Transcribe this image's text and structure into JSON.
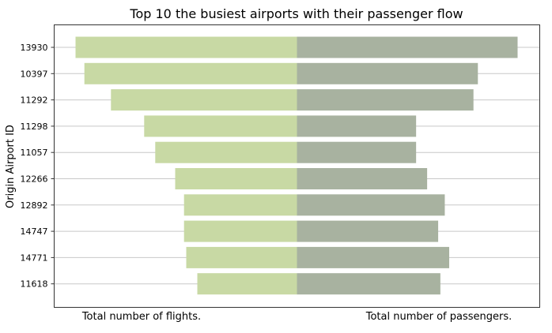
{
  "chart_data": {
    "type": "bar",
    "orientation": "horizontal-diverging",
    "title": "Top 10 the busiest airports with their passenger flow",
    "ylabel": "Origin Airport ID",
    "categories": [
      "13930",
      "10397",
      "11292",
      "11298",
      "11057",
      "12266",
      "12892",
      "14747",
      "14771",
      "11618"
    ],
    "series": [
      {
        "name": "Total number of flights.",
        "side": "left",
        "color": "#c8d9a4",
        "values": [
          1.0,
          0.96,
          0.84,
          0.69,
          0.64,
          0.55,
          0.51,
          0.51,
          0.5,
          0.45
        ]
      },
      {
        "name": "Total number of passengers.",
        "side": "right",
        "color": "#a8b2a0",
        "values": [
          1.0,
          0.82,
          0.8,
          0.54,
          0.54,
          0.59,
          0.67,
          0.64,
          0.69,
          0.65
        ]
      }
    ],
    "grid": true,
    "legend_position": "bottom"
  }
}
